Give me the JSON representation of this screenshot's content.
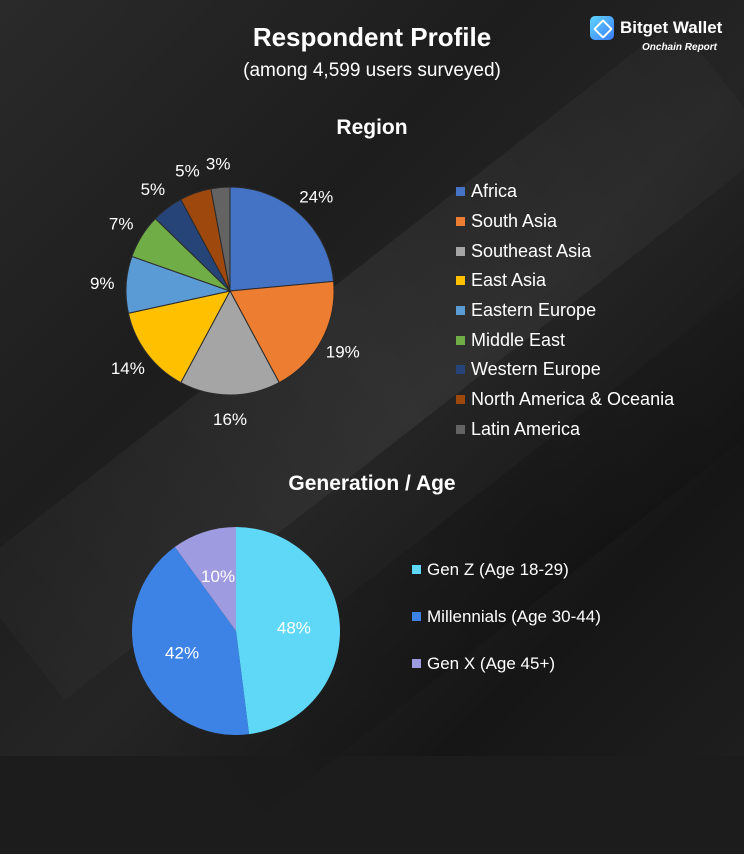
{
  "header": {
    "title": "Respondent Profile",
    "subtitle": "(among 4,599 users surveyed)",
    "brand_name": "Bitget Wallet",
    "brand_sub": "Onchain Report"
  },
  "chart_data": [
    {
      "type": "pie",
      "title": "Region",
      "categories": [
        "Africa",
        "South Asia",
        "Southeast Asia",
        "East Asia",
        "Eastern Europe",
        "Middle East",
        "Western Europe",
        "North America & Oceania",
        "Latin America"
      ],
      "values": [
        24,
        19,
        16,
        14,
        9,
        7,
        5,
        5,
        3
      ],
      "labels": [
        "24%",
        "19%",
        "16%",
        "14%",
        "9%",
        "7%",
        "5%",
        "5%",
        "3%"
      ],
      "colors": [
        "#4472c4",
        "#ed7d31",
        "#a5a5a5",
        "#ffc000",
        "#5b9bd5",
        "#70ad47",
        "#264478",
        "#9e480e",
        "#636363"
      ],
      "legend_position": "right"
    },
    {
      "type": "pie",
      "title": "Generation / Age",
      "categories": [
        "Gen Z (Age 18-29)",
        "Millennials (Age 30-44)",
        "Gen X (Age 45+)"
      ],
      "values": [
        48,
        42,
        10
      ],
      "labels": [
        "48%",
        "42%",
        "10%"
      ],
      "colors": [
        "#5fd8f8",
        "#3d83e6",
        "#9f9be0"
      ],
      "legend_position": "right"
    }
  ]
}
